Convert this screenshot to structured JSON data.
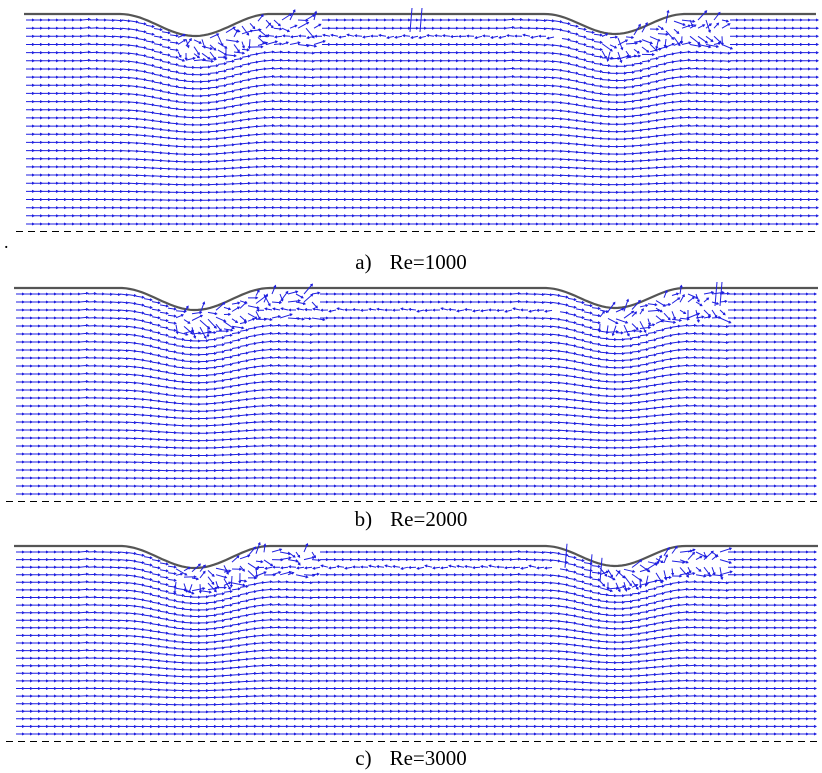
{
  "figure": {
    "panels": [
      {
        "letter": "a)",
        "label": "Re=1000",
        "reynolds": 1000
      },
      {
        "letter": "b)",
        "label": "Re=2000",
        "reynolds": 2000
      },
      {
        "letter": "c)",
        "label": "Re=3000",
        "reynolds": 3000
      }
    ],
    "stray_mark": ".",
    "colors": {
      "vectors": "#1f1fe0",
      "wall": "#555555",
      "axis_dash": "#000000"
    }
  }
}
